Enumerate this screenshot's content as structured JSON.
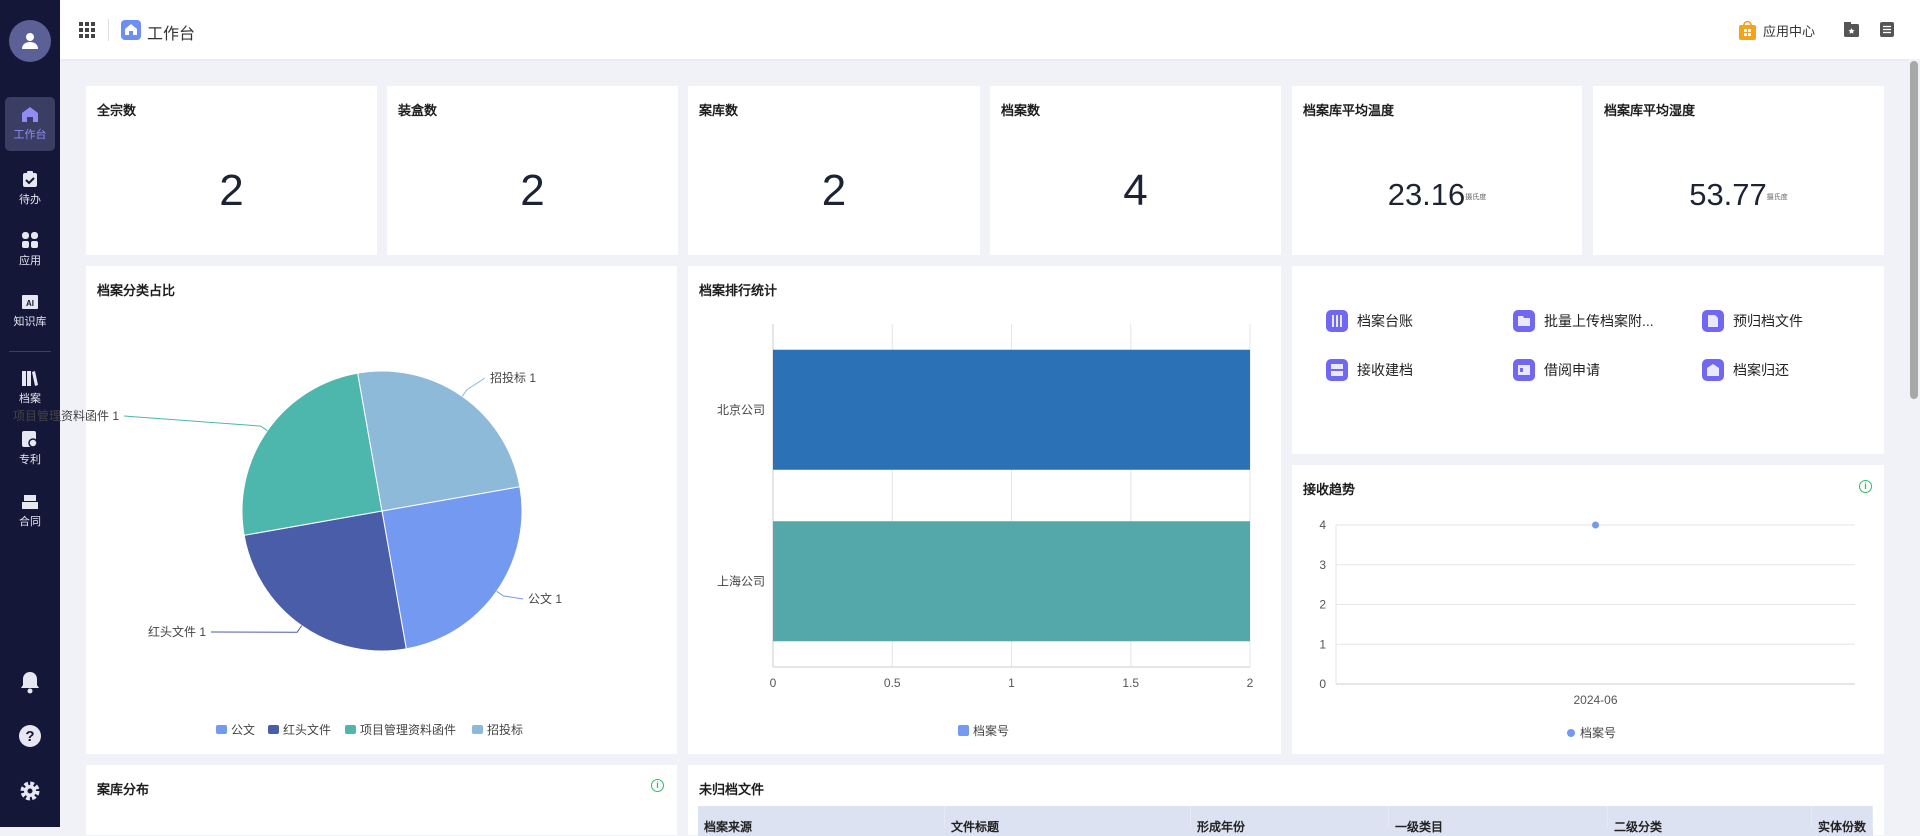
{
  "sidebar": {
    "items": [
      {
        "label": "工作台",
        "icon": "home-icon",
        "active": true
      },
      {
        "label": "待办",
        "icon": "clipboard-check-icon"
      },
      {
        "label": "应用",
        "icon": "apps-icon"
      },
      {
        "label": "知识库",
        "icon": "ai-book-icon"
      },
      {
        "label": "档案",
        "icon": "books-icon"
      },
      {
        "label": "专利",
        "icon": "patent-icon"
      },
      {
        "label": "合同",
        "icon": "contract-icon"
      }
    ],
    "bottom": [
      "bell-icon",
      "help-icon",
      "gear-icon"
    ]
  },
  "header": {
    "title": "工作台",
    "app_center": "应用中心"
  },
  "stats": [
    {
      "title": "全宗数",
      "value": "2"
    },
    {
      "title": "装盒数",
      "value": "2"
    },
    {
      "title": "案库数",
      "value": "2"
    },
    {
      "title": "档案数",
      "value": "4"
    },
    {
      "title": "档案库平均温度",
      "value": "23.16",
      "unit": "摄氏度"
    },
    {
      "title": "档案库平均湿度",
      "value": "53.77",
      "unit": "摄氏度"
    }
  ],
  "shortcuts": [
    {
      "label": "档案台账"
    },
    {
      "label": "批量上传档案附..."
    },
    {
      "label": "预归档文件"
    },
    {
      "label": "接收建档"
    },
    {
      "label": "借阅申请"
    },
    {
      "label": "档案归还"
    }
  ],
  "panels": {
    "distribution": "案库分布",
    "unarchived": "未归档文件"
  },
  "table": {
    "columns": [
      "档案来源",
      "文件标题",
      "形成年份",
      "一级类目",
      "二级分类",
      "实体份数"
    ]
  },
  "chart_data": [
    {
      "type": "pie",
      "title": "档案分类占比",
      "categories": [
        "公文",
        "红头文件",
        "项目管理资料函件",
        "招投标"
      ],
      "values": [
        1,
        1,
        1,
        1
      ],
      "labels": [
        "公文 1",
        "红头文件 1",
        "项目管理资料函件 1",
        "招投标 1"
      ],
      "colors": [
        "#7399f0",
        "#4a5da8",
        "#4db6ad",
        "#8dbad8"
      ],
      "legend": "bottom"
    },
    {
      "type": "bar",
      "orientation": "horizontal",
      "title": "档案排行统计",
      "categories": [
        "北京公司",
        "上海公司"
      ],
      "series": [
        {
          "name": "档案号",
          "values": [
            2,
            2
          ]
        }
      ],
      "bar_colors": [
        "#2a72b5",
        "#55a8aa"
      ],
      "legend_color": "#7399f0",
      "xlim": [
        0,
        2
      ],
      "xticks": [
        "0",
        "0.5",
        "1",
        "1.5",
        "2"
      ],
      "grid": true,
      "legend": "bottom"
    },
    {
      "type": "line",
      "title": "接收趋势",
      "x": [
        "2024-06"
      ],
      "series": [
        {
          "name": "档案号",
          "values": [
            4
          ]
        }
      ],
      "color": "#7399f0",
      "ylim": [
        0,
        4
      ],
      "yticks": [
        "0",
        "1",
        "2",
        "3",
        "4"
      ],
      "grid": true,
      "legend": "bottom"
    }
  ]
}
